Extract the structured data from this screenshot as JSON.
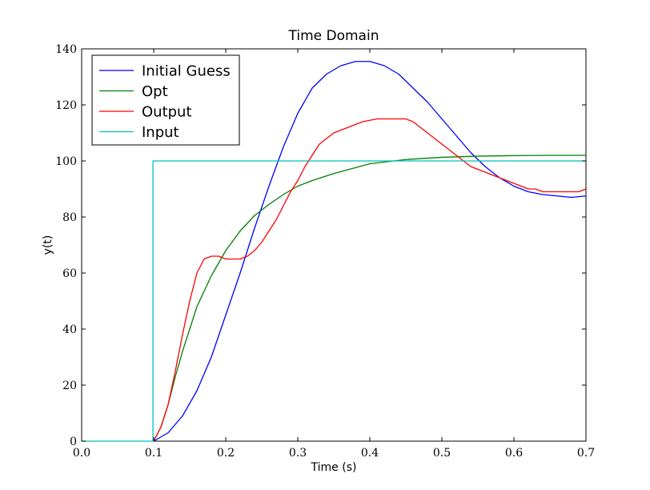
{
  "chart_data": {
    "type": "line",
    "title": "Time Domain",
    "xlabel": "Time (s)",
    "ylabel": "y(t)",
    "xlim": [
      0.0,
      0.7
    ],
    "ylim": [
      0,
      140
    ],
    "xticks": [
      "0.0",
      "0.1",
      "0.2",
      "0.3",
      "0.4",
      "0.5",
      "0.6",
      "0.7"
    ],
    "yticks": [
      "0",
      "20",
      "40",
      "60",
      "80",
      "100",
      "120",
      "140"
    ],
    "grid": false,
    "legend_position": "top-left",
    "series": [
      {
        "name": "Initial Guess",
        "color": "#0000ff",
        "x": [
          0.1,
          0.12,
          0.14,
          0.16,
          0.18,
          0.2,
          0.22,
          0.24,
          0.26,
          0.28,
          0.3,
          0.32,
          0.34,
          0.36,
          0.38,
          0.4,
          0.42,
          0.44,
          0.46,
          0.48,
          0.5,
          0.52,
          0.54,
          0.56,
          0.58,
          0.6,
          0.62,
          0.64,
          0.66,
          0.68,
          0.7
        ],
        "y": [
          0,
          3,
          9,
          18,
          30,
          45,
          60,
          76,
          91,
          105,
          117,
          126,
          131,
          134,
          135.5,
          135.5,
          134,
          131,
          126,
          121,
          115,
          109,
          103,
          98,
          94,
          91,
          89,
          88,
          87.5,
          87,
          87.5
        ]
      },
      {
        "name": "Opt",
        "color": "#008000",
        "x": [
          0.1,
          0.11,
          0.12,
          0.13,
          0.14,
          0.15,
          0.16,
          0.18,
          0.2,
          0.22,
          0.24,
          0.26,
          0.28,
          0.3,
          0.32,
          0.35,
          0.4,
          0.45,
          0.5,
          0.55,
          0.6,
          0.65,
          0.7
        ],
        "y": [
          0,
          5,
          13,
          23,
          32,
          40,
          48,
          59,
          68,
          75,
          80.5,
          84.5,
          88,
          91,
          93,
          95.5,
          99,
          100.5,
          101.3,
          101.7,
          101.9,
          102,
          102
        ]
      },
      {
        "name": "Output",
        "color": "#ff0000",
        "x": [
          0.1,
          0.11,
          0.12,
          0.13,
          0.14,
          0.15,
          0.16,
          0.17,
          0.18,
          0.19,
          0.2,
          0.21,
          0.22,
          0.23,
          0.24,
          0.25,
          0.26,
          0.27,
          0.28,
          0.29,
          0.3,
          0.31,
          0.32,
          0.33,
          0.34,
          0.35,
          0.36,
          0.37,
          0.38,
          0.39,
          0.4,
          0.41,
          0.42,
          0.43,
          0.44,
          0.45,
          0.46,
          0.47,
          0.48,
          0.49,
          0.5,
          0.51,
          0.52,
          0.53,
          0.54,
          0.55,
          0.56,
          0.57,
          0.58,
          0.59,
          0.6,
          0.61,
          0.62,
          0.63,
          0.64,
          0.65,
          0.66,
          0.67,
          0.68,
          0.69,
          0.7
        ],
        "y": [
          0,
          5,
          13,
          25,
          38,
          50,
          60,
          65,
          66,
          66,
          65,
          65,
          65,
          66,
          68,
          71,
          75,
          79,
          84,
          89,
          93,
          98,
          102,
          106,
          108,
          110,
          111,
          112,
          113,
          114,
          114.5,
          115,
          115,
          115,
          115,
          115,
          114,
          112,
          110,
          108,
          106,
          104,
          102,
          100,
          98,
          97,
          96,
          95,
          94,
          93,
          92,
          91,
          90,
          90,
          89,
          89,
          89,
          89,
          89,
          89,
          90
        ]
      },
      {
        "name": "Input",
        "color": "#00bfbf",
        "x": [
          0.0,
          0.099,
          0.099,
          0.7
        ],
        "y": [
          0,
          0,
          100,
          100
        ]
      }
    ]
  }
}
